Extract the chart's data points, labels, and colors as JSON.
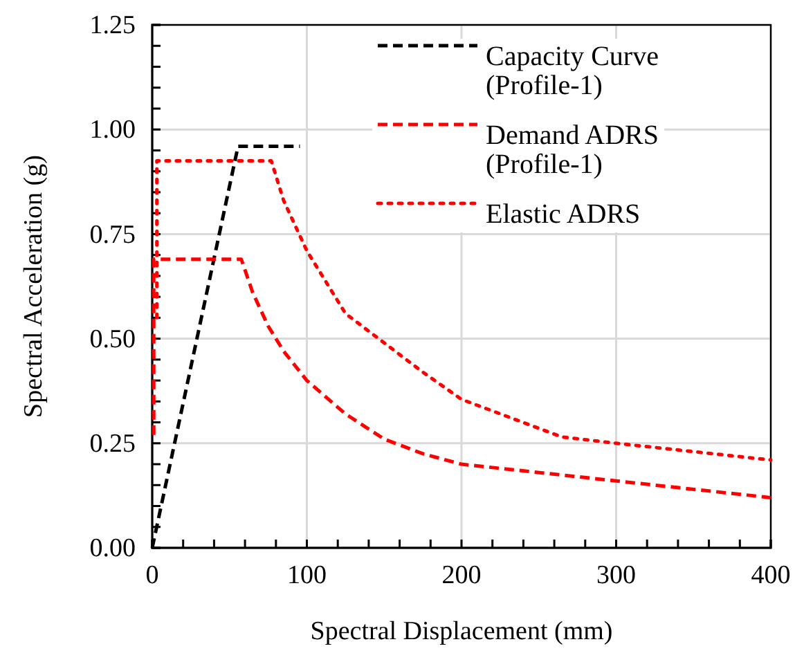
{
  "chart_data": {
    "type": "line",
    "xlabel": "Spectral Displacement (mm)",
    "ylabel": "Spectral Acceleration (g)",
    "xlim": [
      0,
      400
    ],
    "ylim": [
      0,
      1.25
    ],
    "xticks": [
      0,
      {
        "value": 20,
        "label": null
      },
      {
        "value": 40,
        "label": null
      },
      {
        "value": 60,
        "label": null
      },
      {
        "value": 80,
        "label": null
      },
      100,
      {
        "value": 120,
        "label": null
      },
      {
        "value": 140,
        "label": null
      },
      {
        "value": 160,
        "label": null
      },
      {
        "value": 180,
        "label": null
      },
      200,
      {
        "value": 220,
        "label": null
      },
      {
        "value": 240,
        "label": null
      },
      {
        "value": 260,
        "label": null
      },
      {
        "value": 280,
        "label": null
      },
      300,
      {
        "value": 320,
        "label": null
      },
      {
        "value": 340,
        "label": null
      },
      {
        "value": 360,
        "label": null
      },
      {
        "value": 380,
        "label": null
      },
      400
    ],
    "yticks": [
      {
        "value": 0,
        "label": "0.00"
      },
      {
        "value": 0.05,
        "label": null
      },
      {
        "value": 0.1,
        "label": null
      },
      {
        "value": 0.15,
        "label": null
      },
      {
        "value": 0.2,
        "label": null
      },
      {
        "value": 0.25,
        "label": "0.25"
      },
      {
        "value": 0.3,
        "label": null
      },
      {
        "value": 0.35,
        "label": null
      },
      {
        "value": 0.4,
        "label": null
      },
      {
        "value": 0.45,
        "label": null
      },
      {
        "value": 0.5,
        "label": "0.50"
      },
      {
        "value": 0.55,
        "label": null
      },
      {
        "value": 0.6,
        "label": null
      },
      {
        "value": 0.65,
        "label": null
      },
      {
        "value": 0.7,
        "label": null
      },
      {
        "value": 0.75,
        "label": "0.75"
      },
      {
        "value": 0.8,
        "label": null
      },
      {
        "value": 0.85,
        "label": null
      },
      {
        "value": 0.9,
        "label": null
      },
      {
        "value": 0.95,
        "label": null
      },
      {
        "value": 1,
        "label": "1.00"
      },
      {
        "value": 1.05,
        "label": null
      },
      {
        "value": 1.1,
        "label": null
      },
      {
        "value": 1.15,
        "label": null
      },
      {
        "value": 1.2,
        "label": null
      },
      {
        "value": 1.25,
        "label": "1.25"
      }
    ],
    "grid": true,
    "legend": "top right",
    "marker": "none",
    "series": [
      {
        "name": "Capacity Curve (Profile-1)",
        "color": "#000000",
        "line_style": "dashed",
        "x": [
          0,
          55.5,
          95.5
        ],
        "values": [
          0,
          0.96,
          0.96
        ]
      },
      {
        "name": "Demand ADRS (Profile-1)",
        "color": "#ff0000",
        "line_style": "dashed",
        "x": [
          1,
          1,
          57.6,
          65,
          75,
          85,
          100,
          125,
          150,
          175,
          200,
          300,
          400
        ],
        "values": [
          0.27,
          0.69,
          0.69,
          0.61,
          0.53,
          0.47,
          0.4,
          0.32,
          0.26,
          0.225,
          0.2,
          0.16,
          0.12
        ]
      },
      {
        "name": "Elastic ADRS",
        "color": "#ff0000",
        "line_style": "dotted",
        "x": [
          3,
          3,
          77,
          85,
          100,
          125,
          150,
          175,
          200,
          265,
          300,
          400
        ],
        "values": [
          0.55,
          0.925,
          0.925,
          0.83,
          0.71,
          0.56,
          0.49,
          0.42,
          0.355,
          0.265,
          0.25,
          0.21
        ]
      }
    ]
  }
}
